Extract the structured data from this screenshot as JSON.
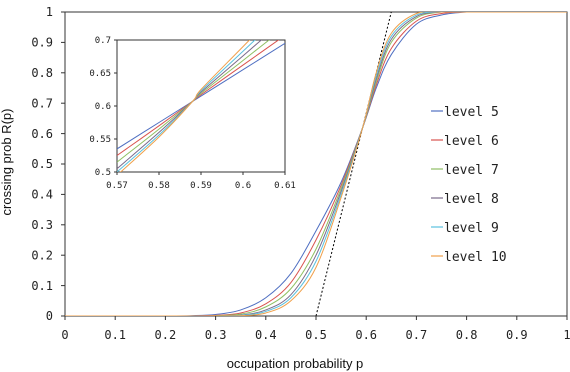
{
  "chart_data": [
    {
      "type": "line",
      "xlabel": "occupation  probability p",
      "ylabel": "crossing prob R(p)",
      "xlim": [
        0,
        1
      ],
      "ylim": [
        0,
        1
      ],
      "x_ticks": [
        "0",
        "0.1",
        "0.2",
        "0.3",
        "0.4",
        "0.5",
        "0.6",
        "0.7",
        "0.8",
        "0.9",
        "1"
      ],
      "y_ticks": [
        "0",
        "0.1",
        "0.2",
        "0.3",
        "0.4",
        "0.5",
        "0.6",
        "0.7",
        "0.8",
        "0.9",
        "1"
      ],
      "grid": false,
      "legend_position": "right",
      "x": [
        0,
        0.05,
        0.1,
        0.15,
        0.2,
        0.25,
        0.3,
        0.35,
        0.4,
        0.45,
        0.5,
        0.55,
        0.593,
        0.62,
        0.65,
        0.7,
        0.75,
        0.8,
        0.85,
        0.9,
        0.95,
        1
      ],
      "series": [
        {
          "name": "level  5",
          "color": "#4f6fc2",
          "values": [
            0,
            0,
            0,
            0,
            0,
            0.001,
            0.005,
            0.02,
            0.06,
            0.14,
            0.28,
            0.44,
            0.62,
            0.75,
            0.86,
            0.96,
            0.99,
            1,
            1,
            1,
            1,
            1
          ]
        },
        {
          "name": "level  6",
          "color": "#d9534f",
          "values": [
            0,
            0,
            0,
            0,
            0,
            0,
            0.002,
            0.01,
            0.04,
            0.11,
            0.25,
            0.43,
            0.62,
            0.76,
            0.88,
            0.97,
            0.995,
            1,
            1,
            1,
            1,
            1
          ]
        },
        {
          "name": "level  7",
          "color": "#8fbf63",
          "values": [
            0,
            0,
            0,
            0,
            0,
            0,
            0.001,
            0.006,
            0.03,
            0.09,
            0.22,
            0.42,
            0.62,
            0.77,
            0.9,
            0.98,
            1,
            1,
            1,
            1,
            1,
            1
          ]
        },
        {
          "name": "level  8",
          "color": "#7a6a8a",
          "values": [
            0,
            0,
            0,
            0,
            0,
            0,
            0,
            0.003,
            0.02,
            0.07,
            0.2,
            0.41,
            0.62,
            0.78,
            0.91,
            0.985,
            1,
            1,
            1,
            1,
            1,
            1
          ]
        },
        {
          "name": "level  9",
          "color": "#5bc0de",
          "values": [
            0,
            0,
            0,
            0,
            0,
            0,
            0,
            0.002,
            0.015,
            0.06,
            0.18,
            0.4,
            0.62,
            0.79,
            0.92,
            0.99,
            1,
            1,
            1,
            1,
            1,
            1
          ]
        },
        {
          "name": "level  10",
          "color": "#f0a04b",
          "values": [
            0,
            0,
            0,
            0,
            0,
            0,
            0,
            0.001,
            0.01,
            0.05,
            0.16,
            0.39,
            0.62,
            0.8,
            0.93,
            0.995,
            1,
            1,
            1,
            1,
            1,
            1
          ]
        }
      ],
      "annotations": [
        {
          "type": "dotted-line",
          "color": "#000000",
          "x": [
            0.5,
            0.65
          ],
          "y": [
            0,
            1
          ]
        }
      ]
    },
    {
      "type": "line",
      "role": "inset",
      "xlim": [
        0.57,
        0.61
      ],
      "ylim": [
        0.5,
        0.7
      ],
      "x_ticks": [
        "0.57",
        "0.58",
        "0.59",
        "0.6",
        "0.61"
      ],
      "y_ticks": [
        "0.5",
        "0.55",
        "0.6",
        "0.65",
        "0.7"
      ],
      "x": [
        0.57,
        0.58,
        0.588,
        0.59,
        0.6,
        0.61
      ],
      "series": [
        {
          "name": "level  5",
          "color": "#4f6fc2",
          "values": [
            0.535,
            0.575,
            0.607,
            0.615,
            0.655,
            0.695
          ]
        },
        {
          "name": "level  6",
          "color": "#d9534f",
          "values": [
            0.525,
            0.57,
            0.607,
            0.617,
            0.662,
            0.707
          ]
        },
        {
          "name": "level  7",
          "color": "#8fbf63",
          "values": [
            0.515,
            0.565,
            0.607,
            0.619,
            0.669,
            0.719
          ]
        },
        {
          "name": "level  8",
          "color": "#7a6a8a",
          "values": [
            0.505,
            0.56,
            0.607,
            0.621,
            0.676,
            0.731
          ]
        },
        {
          "name": "level  9",
          "color": "#5bc0de",
          "values": [
            0.5,
            0.556,
            0.607,
            0.623,
            0.683,
            0.743
          ]
        },
        {
          "name": "level  10",
          "color": "#f0a04b",
          "values": [
            0.495,
            0.553,
            0.607,
            0.625,
            0.69,
            0.755
          ]
        }
      ]
    }
  ]
}
